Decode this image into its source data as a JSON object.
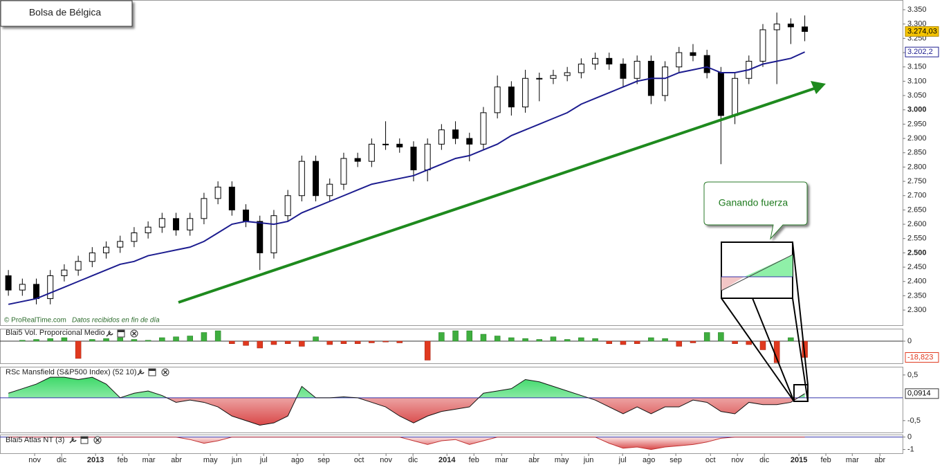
{
  "chart_data": [
    {
      "type": "candlestick",
      "title": "Bolsa de Bélgica",
      "source": "© ProRealTime.com",
      "source_note": "Datos recibidos en fin de día",
      "annotation": "Ganando fuerza",
      "up_color": "#ffffff",
      "down_color": "#000000",
      "xlim": [
        -0.6,
        64
      ],
      "xticks": [
        {
          "value": 1.88,
          "label": "nov"
        },
        {
          "value": 3.81,
          "label": "dic"
        },
        {
          "value": 6.24,
          "label": "2013"
        },
        {
          "value": 8.17,
          "label": "feb"
        },
        {
          "value": 10.05,
          "label": "mar"
        },
        {
          "value": 12.03,
          "label": "abr"
        },
        {
          "value": 14.46,
          "label": "may"
        },
        {
          "value": 16.34,
          "label": "jun"
        },
        {
          "value": 18.27,
          "label": "jul"
        },
        {
          "value": 20.69,
          "label": "ago"
        },
        {
          "value": 22.57,
          "label": "sep"
        },
        {
          "value": 25.1,
          "label": "oct"
        },
        {
          "value": 27.03,
          "label": "nov"
        },
        {
          "value": 28.96,
          "label": "dic"
        },
        {
          "value": 31.39,
          "label": "2014"
        },
        {
          "value": 33.32,
          "label": "feb"
        },
        {
          "value": 35.3,
          "label": "mar"
        },
        {
          "value": 37.62,
          "label": "abr"
        },
        {
          "value": 39.6,
          "label": "may"
        },
        {
          "value": 41.53,
          "label": "jun"
        },
        {
          "value": 43.96,
          "label": "jul"
        },
        {
          "value": 45.84,
          "label": "ago"
        },
        {
          "value": 47.77,
          "label": "sep"
        },
        {
          "value": 50.25,
          "label": "oct"
        },
        {
          "value": 52.18,
          "label": "nov"
        },
        {
          "value": 54.11,
          "label": "dic"
        },
        {
          "value": 56.58,
          "label": "2015"
        },
        {
          "value": 58.51,
          "label": "feb"
        },
        {
          "value": 60.4,
          "label": "mar"
        },
        {
          "value": 62.38,
          "label": "abr"
        }
      ],
      "ylim": [
        2247,
        3384
      ],
      "yticks": [
        {
          "value": 3350,
          "label": "3.350"
        },
        {
          "value": 3300,
          "label": "3.300"
        },
        {
          "value": 3250,
          "label": "3.250"
        },
        {
          "value": 3200,
          "label": "3.200"
        },
        {
          "value": 3150,
          "label": "3.150"
        },
        {
          "value": 3100,
          "label": "3.100"
        },
        {
          "value": 3050,
          "label": "3.050"
        },
        {
          "value": 3000,
          "label": "3.000"
        },
        {
          "value": 2950,
          "label": "2.950"
        },
        {
          "value": 2900,
          "label": "2.900"
        },
        {
          "value": 2850,
          "label": "2.850"
        },
        {
          "value": 2800,
          "label": "2.800"
        },
        {
          "value": 2750,
          "label": "2.750"
        },
        {
          "value": 2700,
          "label": "2.700"
        },
        {
          "value": 2650,
          "label": "2.650"
        },
        {
          "value": 2600,
          "label": "2.600"
        },
        {
          "value": 2550,
          "label": "2.550"
        },
        {
          "value": 2500,
          "label": "2.500"
        },
        {
          "value": 2450,
          "label": "2.450"
        },
        {
          "value": 2400,
          "label": "2.400"
        },
        {
          "value": 2350,
          "label": "2.350"
        },
        {
          "value": 2300,
          "label": "2.300"
        }
      ],
      "open": [
        2420,
        2370,
        2390,
        2340,
        2420,
        2440,
        2470,
        2500,
        2520,
        2540,
        2570,
        2590,
        2620,
        2580,
        2620,
        2690,
        2730,
        2650,
        2610,
        2500,
        2630,
        2700,
        2820,
        2700,
        2740,
        2830,
        2820,
        2880,
        2880,
        2870,
        2790,
        2880,
        2930,
        2900,
        2880,
        2990,
        3080,
        3010,
        3110,
        3110,
        3120,
        3130,
        3160,
        3180,
        3160,
        3110,
        3170,
        3050,
        3150,
        3200,
        3190,
        3130,
        2980,
        3110,
        3170,
        3280,
        3300,
        3290
      ],
      "high": [
        2440,
        2410,
        2410,
        2440,
        2460,
        2490,
        2520,
        2540,
        2560,
        2590,
        2610,
        2640,
        2640,
        2640,
        2710,
        2750,
        2750,
        2670,
        2630,
        2650,
        2720,
        2840,
        2840,
        2760,
        2850,
        2850,
        2900,
        2960,
        2900,
        2890,
        2900,
        2950,
        2960,
        2920,
        3010,
        3120,
        3100,
        3140,
        3130,
        3140,
        3150,
        3180,
        3200,
        3200,
        3180,
        3190,
        3190,
        3170,
        3220,
        3230,
        3210,
        3150,
        3130,
        3190,
        3300,
        3340,
        3320,
        3330
      ],
      "low": [
        2350,
        2350,
        2320,
        2320,
        2400,
        2420,
        2450,
        2480,
        2500,
        2520,
        2550,
        2570,
        2560,
        2560,
        2600,
        2670,
        2630,
        2590,
        2440,
        2480,
        2610,
        2680,
        2680,
        2680,
        2720,
        2800,
        2800,
        2860,
        2850,
        2750,
        2750,
        2860,
        2880,
        2820,
        2860,
        2970,
        2980,
        2990,
        3030,
        3090,
        3100,
        3110,
        3140,
        3140,
        3080,
        3090,
        3020,
        3030,
        3130,
        3170,
        3110,
        2810,
        2950,
        3090,
        3150,
        3090,
        3230,
        3240
      ],
      "close": [
        2370,
        2390,
        2340,
        2420,
        2440,
        2470,
        2500,
        2520,
        2540,
        2570,
        2590,
        2620,
        2580,
        2620,
        2690,
        2730,
        2650,
        2610,
        2500,
        2630,
        2700,
        2820,
        2700,
        2740,
        2830,
        2820,
        2880,
        2880,
        2870,
        2790,
        2880,
        2930,
        2900,
        2880,
        2990,
        3080,
        3010,
        3110,
        3110,
        3120,
        3130,
        3160,
        3180,
        3160,
        3110,
        3170,
        3050,
        3150,
        3200,
        3190,
        3130,
        2980,
        3110,
        3170,
        3280,
        3300,
        3290,
        3274.03
      ],
      "last_value_label": "3.274,03",
      "moving_average": {
        "color": "#1c1c8f",
        "last_value_label": "3.202,2",
        "values": [
          2320,
          2330,
          2340,
          2360,
          2380,
          2400,
          2420,
          2440,
          2460,
          2470,
          2490,
          2500,
          2510,
          2520,
          2540,
          2570,
          2600,
          2610,
          2605,
          2600,
          2610,
          2640,
          2660,
          2680,
          2700,
          2720,
          2740,
          2750,
          2760,
          2770,
          2790,
          2810,
          2830,
          2840,
          2860,
          2880,
          2910,
          2930,
          2950,
          2970,
          2990,
          3020,
          3040,
          3060,
          3080,
          3100,
          3110,
          3110,
          3130,
          3140,
          3150,
          3130,
          3130,
          3140,
          3160,
          3170,
          3180,
          3202.2
        ]
      }
    },
    {
      "type": "bar",
      "title": "Blai5 Vol. Proporcional Medio",
      "positive_color": "#3fae3f",
      "negative_color": "#e0391f",
      "ylim": [
        -25.6,
        14.4
      ],
      "yticks": [
        0
      ],
      "values": [
        0,
        1,
        2,
        3,
        4,
        -20,
        2,
        3,
        4,
        2,
        1,
        4,
        5,
        6,
        10,
        12,
        -3,
        -5,
        -8,
        -4,
        -3,
        -6,
        5,
        -4,
        -3,
        -3,
        -2,
        -1,
        -2,
        0,
        -22,
        10,
        12,
        12,
        8,
        6,
        4,
        3,
        2,
        5,
        2,
        4,
        3,
        -3,
        -4,
        -3,
        4,
        3,
        -6,
        -2,
        10,
        10,
        -3,
        -4,
        -10,
        -25,
        4,
        -18.823
      ],
      "last_value_label": "-18,823"
    },
    {
      "type": "area",
      "title": "RSc Mansfield (S&P500 Index) (52 10)",
      "positive_color": "#7fe69a",
      "negative_color": "#d94848",
      "line_color": "#111",
      "ylim": [
        -0.76,
        0.68
      ],
      "yticks": [
        {
          "value": 0.5,
          "label": "0,5"
        },
        {
          "value": -0.5,
          "label": "-0,5"
        }
      ],
      "values": [
        0.1,
        0.2,
        0.3,
        0.45,
        0.45,
        0.4,
        0.45,
        0.3,
        0.0,
        0.1,
        0.15,
        0.05,
        -0.1,
        -0.05,
        -0.1,
        -0.2,
        -0.4,
        -0.5,
        -0.6,
        -0.55,
        -0.4,
        0.25,
        0.0,
        0.0,
        0.02,
        0.0,
        -0.1,
        -0.2,
        -0.4,
        -0.55,
        -0.4,
        -0.3,
        -0.25,
        -0.2,
        0.1,
        0.15,
        0.2,
        0.4,
        0.35,
        0.25,
        0.15,
        0.05,
        -0.05,
        -0.2,
        -0.35,
        -0.2,
        -0.35,
        -0.2,
        -0.2,
        -0.05,
        -0.1,
        -0.3,
        -0.35,
        -0.1,
        -0.15,
        -0.15,
        -0.1,
        0.0914
      ],
      "last_value_label": "0,0914"
    },
    {
      "type": "area",
      "title": "Blai5 Atlas NT (3)",
      "positive_color": "#7fe69a",
      "negative_color": "#d94848",
      "line_color": "#c03030",
      "ylim": [
        -1.3,
        0.2
      ],
      "yticks": [
        0,
        -1
      ],
      "values": [
        0,
        0,
        0,
        0,
        0,
        0,
        0,
        0,
        0,
        0,
        0,
        0,
        0,
        -0.2,
        -0.5,
        -0.3,
        0,
        0,
        0,
        0,
        0,
        0,
        0,
        0,
        0,
        0,
        0,
        0,
        0,
        -0.3,
        -0.6,
        -0.3,
        -0.2,
        -0.6,
        -0.3,
        0,
        0,
        0,
        0,
        0,
        0,
        0,
        0,
        -0.5,
        -0.9,
        -0.8,
        -1.0,
        -0.8,
        -0.7,
        -0.6,
        -0.4,
        -0.1,
        0,
        0,
        0,
        0,
        0,
        0
      ]
    }
  ]
}
